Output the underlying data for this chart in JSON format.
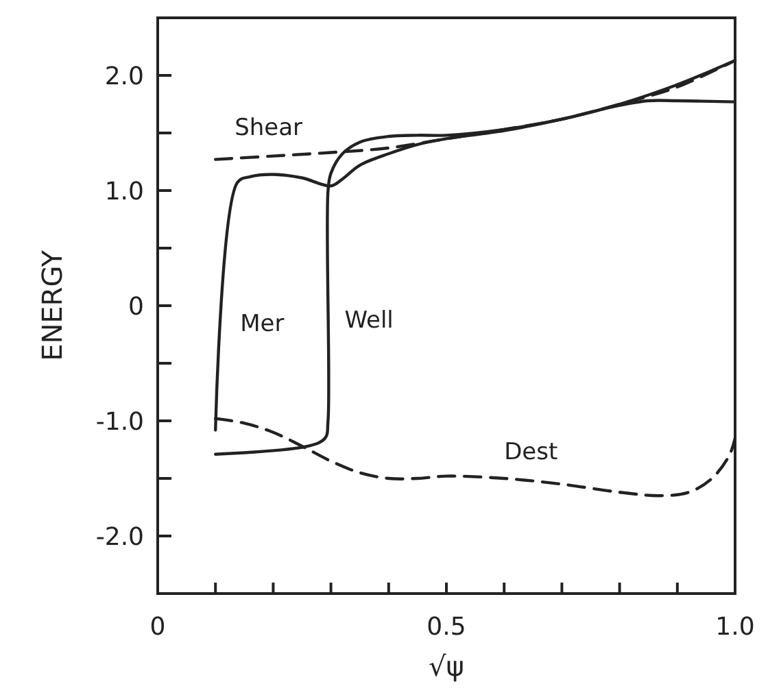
{
  "chart_data": {
    "type": "line",
    "xlabel": "√ψ",
    "ylabel": "ENERGY",
    "xlim": [
      0,
      1
    ],
    "ylim": [
      -2.5,
      2.5
    ],
    "xticks": [
      0,
      {
        "value": 0.1,
        "label": null
      },
      {
        "value": 0.2,
        "label": null
      },
      {
        "value": 0.3,
        "label": null
      },
      {
        "value": 0.4,
        "label": null
      },
      0.5,
      {
        "value": 0.6,
        "label": null
      },
      {
        "value": 0.7,
        "label": null
      },
      {
        "value": 0.8,
        "label": null
      },
      {
        "value": 0.9,
        "label": null
      },
      {
        "value": 1,
        "label": "1.0"
      }
    ],
    "yticks": [
      {
        "value": -2,
        "label": "-2.0"
      },
      {
        "value": -1.5,
        "label": null
      },
      {
        "value": -1,
        "label": "-1.0"
      },
      {
        "value": -0.5,
        "label": null
      },
      0,
      {
        "value": 0.5,
        "label": null
      },
      {
        "value": 1,
        "label": "1.0"
      },
      {
        "value": 1.5,
        "label": null
      },
      {
        "value": 2,
        "label": "2.0"
      }
    ],
    "grid": false,
    "legend": false,
    "marker": "none",
    "series": [
      {
        "name": "Shear",
        "color": "#222222",
        "line_style": "dashed",
        "x": [
          0.1,
          0.2,
          0.3,
          0.4,
          0.5,
          0.6,
          0.7,
          0.8,
          0.9,
          1.0
        ],
        "values": [
          1.27,
          1.3,
          1.33,
          1.37,
          1.45,
          1.53,
          1.62,
          1.75,
          1.9,
          2.13
        ]
      },
      {
        "name": "Mer",
        "color": "#222222",
        "line_style": "solid",
        "x": [
          0.1,
          0.138,
          0.16,
          0.2,
          0.25,
          0.3,
          0.32,
          0.35,
          0.4,
          0.45,
          0.5,
          0.6,
          0.7,
          0.8,
          0.9,
          1.0
        ],
        "values": [
          -1.08,
          1.07,
          1.12,
          1.14,
          1.11,
          1.04,
          1.1,
          1.22,
          1.32,
          1.4,
          1.45,
          1.52,
          1.62,
          1.75,
          1.92,
          2.13
        ]
      },
      {
        "name": "Well",
        "color": "#222222",
        "line_style": "solid",
        "x": [
          0.1,
          0.26,
          0.29,
          0.295,
          0.295,
          0.3,
          0.32,
          0.35,
          0.4,
          0.45,
          0.5,
          0.6,
          0.7,
          0.8,
          0.85,
          0.9,
          1.0
        ],
        "values": [
          -1.29,
          -1.22,
          -1.15,
          -1.0,
          1.0,
          1.15,
          1.32,
          1.42,
          1.47,
          1.48,
          1.48,
          1.53,
          1.62,
          1.74,
          1.78,
          1.78,
          1.77
        ]
      },
      {
        "name": "Dest",
        "color": "#222222",
        "line_style": "dashed",
        "x": [
          0.1,
          0.15,
          0.2,
          0.25,
          0.3,
          0.35,
          0.4,
          0.45,
          0.5,
          0.6,
          0.7,
          0.8,
          0.87,
          0.92,
          0.96,
          0.99,
          1.0
        ],
        "values": [
          -0.98,
          -1.02,
          -1.1,
          -1.22,
          -1.35,
          -1.45,
          -1.5,
          -1.5,
          -1.48,
          -1.5,
          -1.55,
          -1.62,
          -1.65,
          -1.62,
          -1.5,
          -1.3,
          -1.15
        ]
      }
    ]
  }
}
